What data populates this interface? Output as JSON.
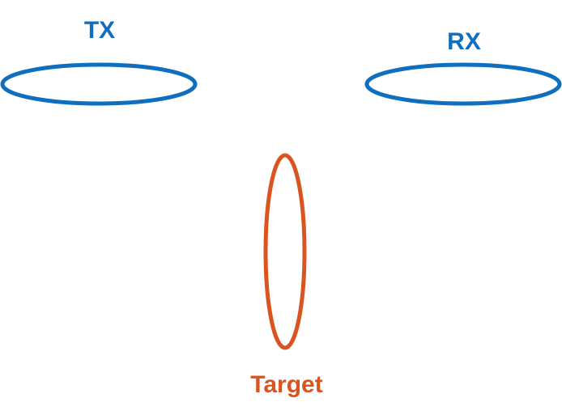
{
  "colors": {
    "blue": "#0F6FBE",
    "orange": "#D9541F",
    "background": "#ffffff"
  },
  "labels": {
    "tx": "TX",
    "rx": "RX",
    "target": "Target"
  }
}
